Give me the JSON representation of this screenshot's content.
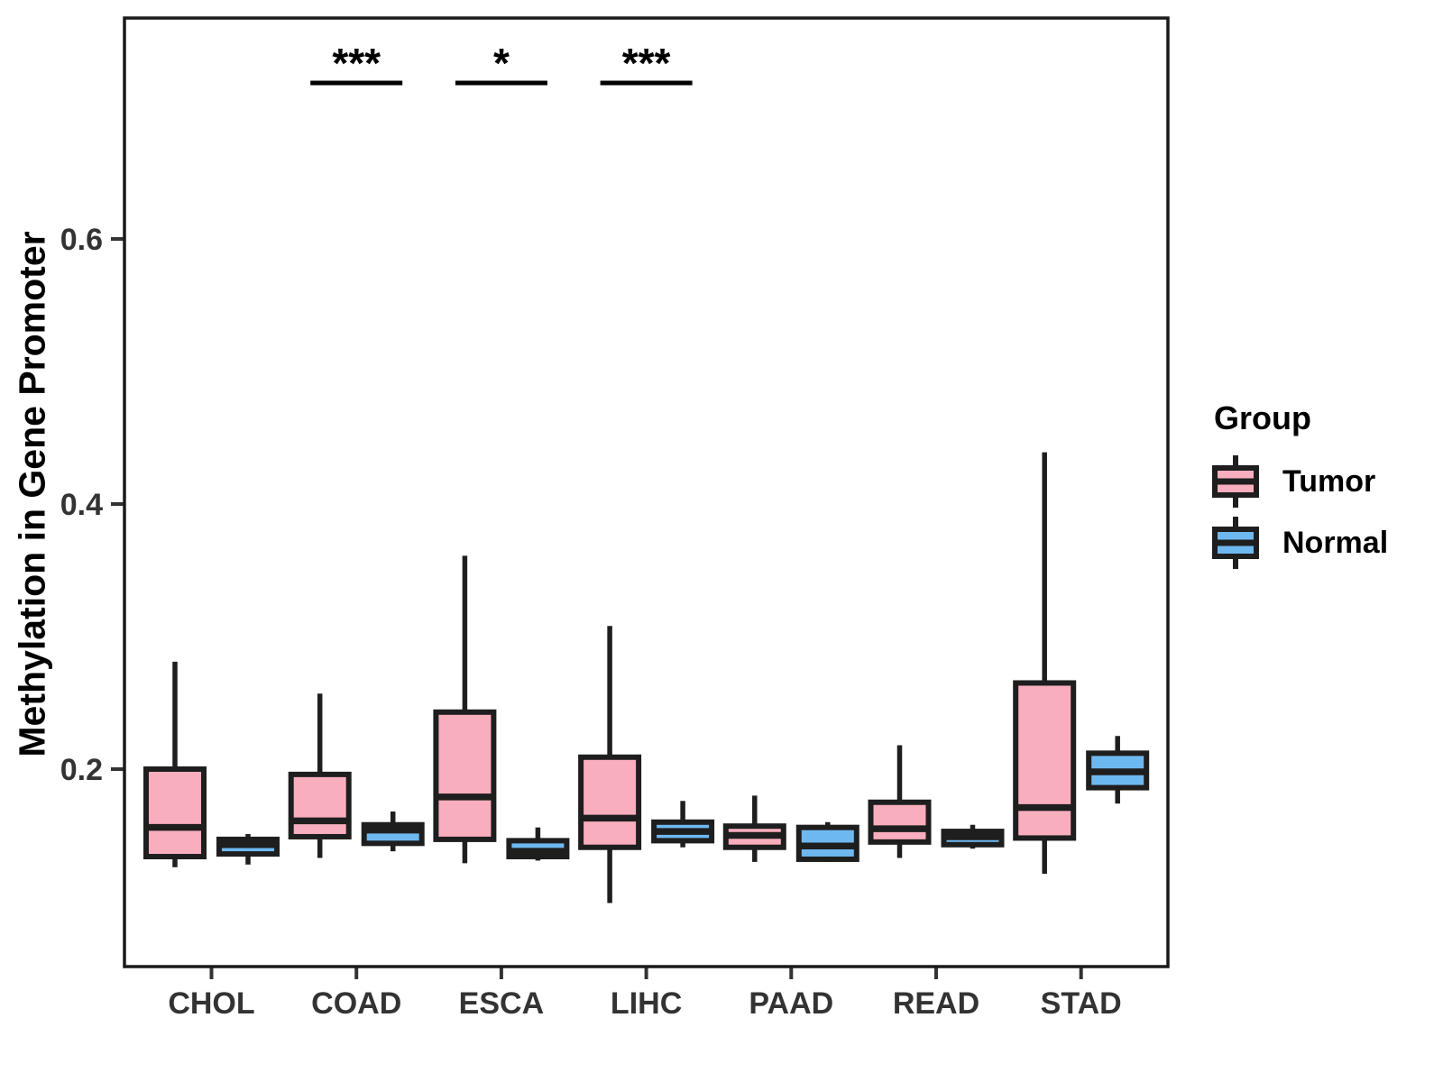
{
  "chart_data": {
    "type": "boxplot",
    "title": "",
    "xlabel": "",
    "ylabel": "Methylation in Gene Promoter",
    "categories": [
      "CHOL",
      "COAD",
      "ESCA",
      "LIHC",
      "PAAD",
      "READ",
      "STAD"
    ],
    "yticks": [
      0.2,
      0.4,
      0.6
    ],
    "ylim": [
      0.05,
      0.77
    ],
    "grid": false,
    "panel_border": true,
    "colors": {
      "tumor": "#F9AEBE",
      "normal": "#6EB8F0",
      "stroke": "#1E1E1E"
    },
    "legend": {
      "title": "Group",
      "position": "right",
      "entries": [
        {
          "label": "Tumor",
          "color": "#F9AEBE"
        },
        {
          "label": "Normal",
          "color": "#6EB8F0"
        }
      ]
    },
    "series": [
      {
        "name": "Tumor",
        "color": "#F9AEBE",
        "boxes": [
          {
            "category": "CHOL",
            "whisker_low": 0.126,
            "q1": 0.134,
            "median": 0.156,
            "q3": 0.2,
            "whisker_high": 0.281
          },
          {
            "category": "COAD",
            "whisker_low": 0.133,
            "q1": 0.149,
            "median": 0.161,
            "q3": 0.196,
            "whisker_high": 0.257
          },
          {
            "category": "ESCA",
            "whisker_low": 0.129,
            "q1": 0.147,
            "median": 0.179,
            "q3": 0.243,
            "whisker_high": 0.361
          },
          {
            "category": "LIHC",
            "whisker_low": 0.099,
            "q1": 0.141,
            "median": 0.163,
            "q3": 0.209,
            "whisker_high": 0.308
          },
          {
            "category": "PAAD",
            "whisker_low": 0.13,
            "q1": 0.141,
            "median": 0.15,
            "q3": 0.157,
            "whisker_high": 0.18
          },
          {
            "category": "READ",
            "whisker_low": 0.133,
            "q1": 0.145,
            "median": 0.155,
            "q3": 0.175,
            "whisker_high": 0.218
          },
          {
            "category": "STAD",
            "whisker_low": 0.121,
            "q1": 0.148,
            "median": 0.171,
            "q3": 0.265,
            "whisker_high": 0.439
          }
        ]
      },
      {
        "name": "Normal",
        "color": "#6EB8F0",
        "boxes": [
          {
            "category": "CHOL",
            "whisker_low": 0.128,
            "q1": 0.136,
            "median": 0.143,
            "q3": 0.147,
            "whisker_high": 0.151
          },
          {
            "category": "COAD",
            "whisker_low": 0.138,
            "q1": 0.144,
            "median": 0.154,
            "q3": 0.158,
            "whisker_high": 0.168
          },
          {
            "category": "ESCA",
            "whisker_low": 0.131,
            "q1": 0.134,
            "median": 0.138,
            "q3": 0.146,
            "whisker_high": 0.156
          },
          {
            "category": "LIHC",
            "whisker_low": 0.141,
            "q1": 0.146,
            "median": 0.153,
            "q3": 0.16,
            "whisker_high": 0.176
          },
          {
            "category": "PAAD",
            "whisker_low": 0.13,
            "q1": 0.132,
            "median": 0.142,
            "q3": 0.156,
            "whisker_high": 0.16
          },
          {
            "category": "READ",
            "whisker_low": 0.14,
            "q1": 0.143,
            "median": 0.149,
            "q3": 0.153,
            "whisker_high": 0.158
          },
          {
            "category": "STAD",
            "whisker_low": 0.174,
            "q1": 0.186,
            "median": 0.198,
            "q3": 0.212,
            "whisker_high": 0.225
          }
        ]
      }
    ],
    "significance": [
      {
        "category": "COAD",
        "label": "***"
      },
      {
        "category": "ESCA",
        "label": "*"
      },
      {
        "category": "LIHC",
        "label": "***"
      }
    ]
  }
}
